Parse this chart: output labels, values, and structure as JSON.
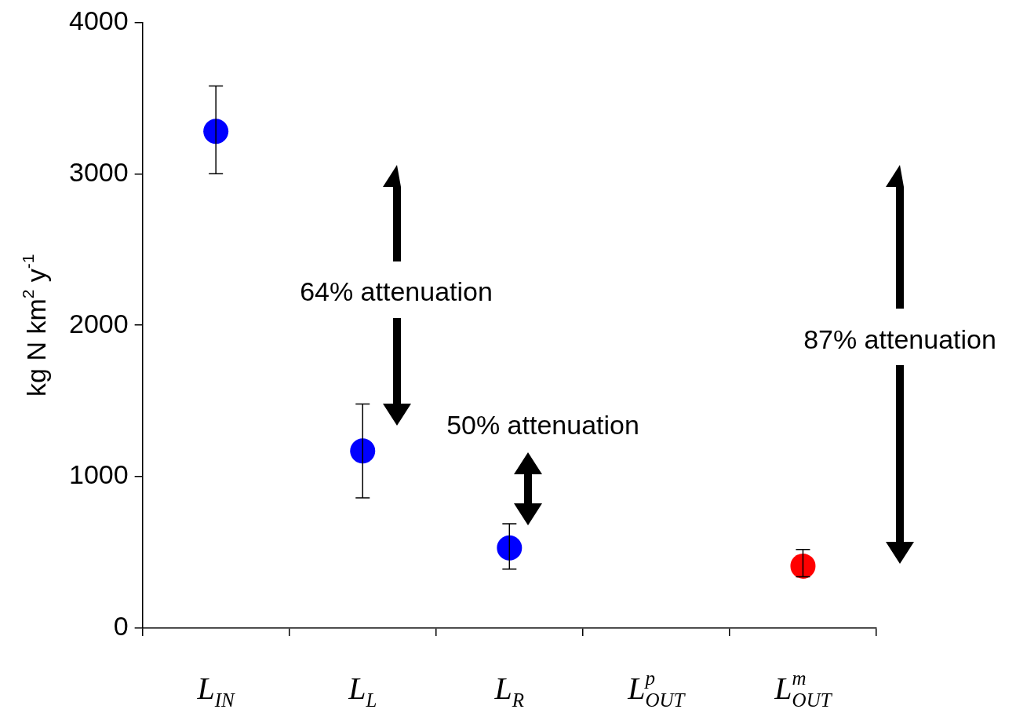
{
  "chart_data": {
    "type": "scatter",
    "ylabel": "kg N km$^{2}$ y$^{-1}$",
    "categories": [
      "L$_{IN}$",
      "L$_{L}$",
      "L$_{R}$",
      "L$^{p}$$_{OUT}$",
      "L$^{m}$$_{OUT}$"
    ],
    "series": [
      {
        "colors": [
          "#0000ff",
          "#0000ff",
          "#0000ff",
          null,
          "#ff0000"
        ],
        "values": [
          3280,
          1170,
          530,
          null,
          410
        ],
        "errors": [
          [
            3000,
            3580
          ],
          [
            860,
            1480
          ],
          [
            390,
            690
          ],
          null,
          [
            340,
            520
          ]
        ]
      }
    ],
    "ylim": [
      0,
      4000
    ],
    "yticks": [
      0,
      1000,
      2000,
      3000,
      4000
    ],
    "grid": false,
    "legend": false,
    "marker": "circle",
    "annotations": [
      "64% attenuation",
      "50% attenuation",
      "87% attenuation"
    ]
  }
}
